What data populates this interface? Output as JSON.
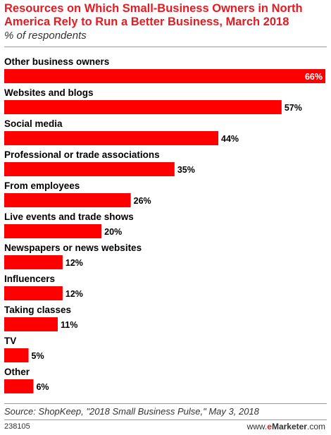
{
  "chart_data": {
    "type": "bar",
    "orientation": "horizontal",
    "title": "Resources on Which Small-Business Owners in North America Rely to Run a Better Business, March 2018",
    "subtitle": "% of respondents",
    "categories": [
      "Other business owners",
      "Websites and blogs",
      "Social media",
      "Professional or trade associations",
      "From employees",
      "Live events and trade shows",
      "Newspapers or news websites",
      "Influencers",
      "Taking classes",
      "TV",
      "Other"
    ],
    "values": [
      66,
      57,
      44,
      35,
      26,
      20,
      12,
      12,
      11,
      5,
      6
    ],
    "value_suffix": "%",
    "xlim": [
      0,
      66
    ],
    "grid": false,
    "bar_color": "#ff0000"
  },
  "footer": {
    "source": "Source: ShopKeep, \"2018 Small Business Pulse,\" May 3, 2018",
    "chart_id": "238105",
    "brand_prefix": "www.",
    "brand_e": "e",
    "brand_name": "Marketer",
    "brand_suffix": ".com"
  },
  "colors": {
    "title": "#e31b23",
    "bar": "#ff0000"
  }
}
